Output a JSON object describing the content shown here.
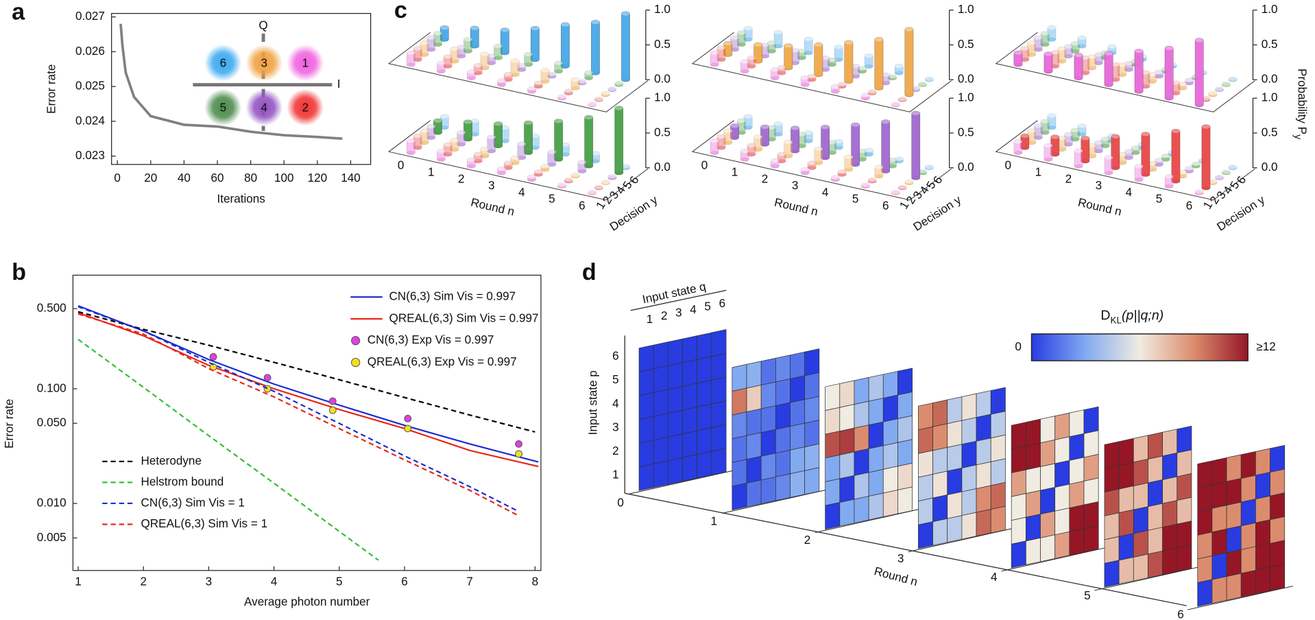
{
  "panels": [
    "a",
    "b",
    "c",
    "d"
  ],
  "chart_data": [
    {
      "type": "line",
      "xlabel": "Iterations",
      "ylabel": "Error rate",
      "color": "#808080",
      "x": [
        2,
        3,
        5,
        10,
        20,
        40,
        60,
        80,
        100,
        120,
        135
      ],
      "values": [
        0.0268,
        0.0262,
        0.0254,
        0.0247,
        0.02415,
        0.0239,
        0.02385,
        0.0237,
        0.0236,
        0.02355,
        0.0235
      ],
      "xlim": [
        -3.5,
        152
      ],
      "ylim": [
        0.02276,
        0.0271
      ],
      "xticks": [
        0,
        20,
        40,
        60,
        80,
        100,
        120,
        140
      ],
      "yticks": [
        0.023,
        0.024,
        0.025,
        0.026,
        0.027
      ],
      "inset": {
        "labels": [
          "6",
          "3",
          "1",
          "5",
          "4",
          "2"
        ],
        "colors": [
          "#3aa8f0",
          "#f0a040",
          "#f060e0",
          "#4a8a4a",
          "#9050c0",
          "#f03030"
        ],
        "axis_labels": [
          "Q",
          "I"
        ]
      }
    },
    {
      "type": "line",
      "log_y": true,
      "xlabel": "Average photon number",
      "ylabel": "Error rate",
      "xlim": [
        0.92,
        8.09
      ],
      "ylim": [
        0.0026,
        0.98
      ],
      "xticks": [
        1,
        2,
        3,
        4,
        5,
        6,
        7,
        8
      ],
      "yticks": [
        {
          "value": 0.005,
          "label": "0.005"
        },
        {
          "value": 0.01,
          "label": "0.010"
        },
        {
          "value": 0.05,
          "label": "0.050"
        },
        {
          "value": 0.1,
          "label": "0.100"
        },
        {
          "value": 0.5,
          "label": "0.500"
        }
      ],
      "series": [
        {
          "name": "CN(6,3) Sim Vis = 0.997",
          "color": "#1a2ed0",
          "style": "solid",
          "legend": "upper right",
          "x": [
            1,
            2,
            3,
            4,
            5,
            6,
            7,
            8.05
          ],
          "values": [
            0.53,
            0.32,
            0.18,
            0.11,
            0.072,
            0.048,
            0.033,
            0.023
          ]
        },
        {
          "name": "QREAL(6,3) Sim Vis = 0.997",
          "color": "#e82818",
          "style": "solid",
          "legend": "upper right",
          "x": [
            1,
            2,
            3,
            4,
            5,
            6,
            7,
            8.05
          ],
          "values": [
            0.46,
            0.29,
            0.16,
            0.1,
            0.066,
            0.045,
            0.029,
            0.021
          ]
        },
        {
          "name": "CN(6,3) Exp Vis = 0.997",
          "color": "#e040e0",
          "style": "markers",
          "legend": "upper right",
          "x": [
            3.07,
            3.9,
            4.9,
            6.05,
            7.75
          ],
          "values": [
            0.19,
            0.125,
            0.078,
            0.055,
            0.033
          ]
        },
        {
          "name": "QREAL(6,3) Exp Vis = 0.997",
          "color": "#f0e020",
          "style": "markers",
          "legend": "upper right",
          "x": [
            3.07,
            3.9,
            4.9,
            6.05,
            7.75
          ],
          "values": [
            0.155,
            0.1,
            0.065,
            0.045,
            0.027
          ]
        },
        {
          "name": "Heterodyne",
          "color": "#000000",
          "style": "dashed",
          "legend": "lower left",
          "x": [
            1,
            2,
            3,
            4,
            5,
            6,
            7,
            8
          ],
          "values": [
            0.47,
            0.33,
            0.24,
            0.17,
            0.12,
            0.084,
            0.059,
            0.042
          ]
        },
        {
          "name": "Helstrom bound",
          "color": "#30c030",
          "style": "dashed",
          "legend": "lower left",
          "x": [
            1,
            2,
            3,
            4,
            5,
            5.6
          ],
          "values": [
            0.27,
            0.103,
            0.039,
            0.015,
            0.0057,
            0.0032
          ]
        },
        {
          "name": "CN(6,3) Sim Vis = 1",
          "color": "#1a2ed0",
          "style": "dashed",
          "legend": "lower left",
          "x": [
            1,
            2,
            3,
            4,
            5,
            6,
            7,
            7.75
          ],
          "values": [
            0.52,
            0.32,
            0.17,
            0.095,
            0.05,
            0.026,
            0.014,
            0.0085
          ]
        },
        {
          "name": "QREAL(6,3) Sim Vis = 1",
          "color": "#e82818",
          "style": "dashed",
          "legend": "lower left",
          "x": [
            1,
            2,
            3,
            4,
            5,
            6,
            7,
            7.75
          ],
          "values": [
            0.45,
            0.3,
            0.15,
            0.085,
            0.045,
            0.024,
            0.013,
            0.0078
          ]
        }
      ]
    },
    {
      "type": "bar3d",
      "xlabel": "Round n",
      "ylabel": "Decision y",
      "zlabel": "Probability P",
      "zlabel_sub": "y",
      "round_ticks": [
        0,
        1,
        2,
        3,
        4,
        5,
        6
      ],
      "decision_ticks": [
        1,
        2,
        3,
        4,
        5,
        6
      ],
      "zlim": [
        0,
        1
      ],
      "zticks": [
        {
          "value": 0,
          "label": "0.0"
        },
        {
          "value": 0.5,
          "label": "0.5"
        },
        {
          "value": 1,
          "label": "1.0"
        }
      ],
      "decision_colors": [
        "#e868d8",
        "#e84848",
        "#f0a848",
        "#a068d0",
        "#48a048",
        "#48a8e8"
      ],
      "series": [
        {
          "color": "#48a8e8",
          "values": [
            [
              0.17,
              0.16,
              0.17,
              0.17,
              0.16,
              0.17
            ],
            [
              0.12,
              0.14,
              0.18,
              0.13,
              0.17,
              0.26
            ],
            [
              0.09,
              0.11,
              0.2,
              0.1,
              0.17,
              0.33
            ],
            [
              0.06,
              0.08,
              0.2,
              0.06,
              0.15,
              0.45
            ],
            [
              0.04,
              0.05,
              0.16,
              0.03,
              0.12,
              0.6
            ],
            [
              0.02,
              0.03,
              0.12,
              0.02,
              0.08,
              0.73
            ],
            [
              0.01,
              0.01,
              0.02,
              0.01,
              0.02,
              0.95
            ]
          ]
        },
        {
          "color": "#f0a848",
          "values": [
            [
              0.17,
              0.17,
              0.16,
              0.17,
              0.17,
              0.16
            ],
            [
              0.14,
              0.12,
              0.24,
              0.16,
              0.12,
              0.2
            ],
            [
              0.12,
              0.08,
              0.32,
              0.18,
              0.1,
              0.2
            ],
            [
              0.1,
              0.05,
              0.43,
              0.17,
              0.07,
              0.18
            ],
            [
              0.07,
              0.03,
              0.56,
              0.15,
              0.04,
              0.15
            ],
            [
              0.04,
              0.02,
              0.7,
              0.12,
              0.02,
              0.1
            ],
            [
              0.01,
              0.01,
              0.94,
              0.02,
              0.01,
              0.01
            ]
          ]
        },
        {
          "color": "#e868d8",
          "values": [
            [
              0.17,
              0.16,
              0.17,
              0.17,
              0.16,
              0.17
            ],
            [
              0.25,
              0.2,
              0.18,
              0.14,
              0.11,
              0.12
            ],
            [
              0.33,
              0.22,
              0.16,
              0.12,
              0.08,
              0.09
            ],
            [
              0.45,
              0.22,
              0.14,
              0.09,
              0.05,
              0.05
            ],
            [
              0.58,
              0.2,
              0.1,
              0.06,
              0.03,
              0.03
            ],
            [
              0.72,
              0.15,
              0.06,
              0.04,
              0.02,
              0.01
            ],
            [
              0.93,
              0.02,
              0.02,
              0.01,
              0.01,
              0.01
            ]
          ]
        },
        {
          "color": "#48a048",
          "values": [
            [
              0.17,
              0.17,
              0.17,
              0.16,
              0.17,
              0.16
            ],
            [
              0.12,
              0.14,
              0.13,
              0.17,
              0.25,
              0.19
            ],
            [
              0.09,
              0.1,
              0.1,
              0.2,
              0.32,
              0.19
            ],
            [
              0.06,
              0.07,
              0.07,
              0.2,
              0.43,
              0.17
            ],
            [
              0.04,
              0.04,
              0.05,
              0.18,
              0.55,
              0.14
            ],
            [
              0.02,
              0.02,
              0.02,
              0.13,
              0.7,
              0.11
            ],
            [
              0.01,
              0.01,
              0.01,
              0.02,
              0.93,
              0.02
            ]
          ]
        },
        {
          "color": "#a068d0",
          "values": [
            [
              0.17,
              0.16,
              0.17,
              0.17,
              0.17,
              0.16
            ],
            [
              0.12,
              0.13,
              0.18,
              0.25,
              0.17,
              0.15
            ],
            [
              0.08,
              0.1,
              0.2,
              0.33,
              0.17,
              0.12
            ],
            [
              0.05,
              0.07,
              0.2,
              0.44,
              0.15,
              0.09
            ],
            [
              0.03,
              0.04,
              0.18,
              0.57,
              0.12,
              0.06
            ],
            [
              0.02,
              0.02,
              0.13,
              0.71,
              0.09,
              0.03
            ],
            [
              0.01,
              0.01,
              0.02,
              0.93,
              0.02,
              0.01
            ]
          ]
        },
        {
          "color": "#e84848",
          "values": [
            [
              0.16,
              0.17,
              0.17,
              0.17,
              0.16,
              0.17
            ],
            [
              0.2,
              0.25,
              0.16,
              0.14,
              0.13,
              0.12
            ],
            [
              0.22,
              0.33,
              0.15,
              0.12,
              0.1,
              0.08
            ],
            [
              0.22,
              0.45,
              0.12,
              0.09,
              0.07,
              0.05
            ],
            [
              0.19,
              0.58,
              0.09,
              0.06,
              0.05,
              0.03
            ],
            [
              0.14,
              0.72,
              0.06,
              0.04,
              0.03,
              0.01
            ],
            [
              0.02,
              0.88,
              0.02,
              0.01,
              0.01,
              0.01
            ]
          ]
        }
      ]
    },
    {
      "type": "heatmap3d",
      "xlabel": "Round n",
      "qlabel": "Input state q",
      "plabel": "Input state p",
      "colorbar_label": "D",
      "colorbar_label_sub": "KL",
      "colorbar_label_rest": "(p||q;n)",
      "clim": [
        0,
        12
      ],
      "cticks": [
        0,
        {
          "value": 12,
          "label": "≥12"
        }
      ],
      "round_ticks": [
        0,
        1,
        2,
        3,
        4,
        5,
        6
      ],
      "q_ticks": [
        1,
        2,
        3,
        4,
        5,
        6
      ],
      "p_ticks": [
        1,
        2,
        3,
        4,
        5,
        6
      ],
      "matrices": [
        [
          [
            0,
            0,
            0,
            0,
            0,
            0
          ],
          [
            0,
            0,
            0,
            0,
            0,
            0
          ],
          [
            0,
            0,
            0,
            0,
            0,
            0
          ],
          [
            0,
            0,
            0,
            0,
            0,
            0
          ],
          [
            0,
            0,
            0,
            0,
            0,
            0
          ],
          [
            0,
            0,
            0,
            0,
            0,
            0
          ]
        ],
        [
          [
            0,
            1.5,
            1.5,
            2.1,
            3.3,
            3
          ],
          [
            1.5,
            0,
            2.1,
            1.5,
            3,
            3.3
          ],
          [
            1.5,
            2.1,
            0,
            1.5,
            2.1,
            1.5
          ],
          [
            2.1,
            1.5,
            1.5,
            0,
            1.5,
            2.1
          ],
          [
            9.5,
            7,
            2.1,
            1.5,
            0,
            1.5
          ],
          [
            3,
            3.3,
            1.5,
            2.1,
            1.5,
            0
          ]
        ],
        [
          [
            0,
            3,
            3,
            4.2,
            6.6,
            6
          ],
          [
            3,
            0,
            4.2,
            3,
            6,
            6.6
          ],
          [
            3,
            4.2,
            0,
            3,
            4.2,
            3
          ],
          [
            10.5,
            11,
            9,
            0,
            3,
            4.2
          ],
          [
            6.6,
            6,
            4.2,
            3,
            0,
            3
          ],
          [
            6,
            6.6,
            3,
            4.2,
            3,
            0
          ]
        ],
        [
          [
            0,
            4.5,
            4.5,
            6.3,
            9.9,
            9
          ],
          [
            4.5,
            0,
            6.3,
            4.5,
            9,
            9.9
          ],
          [
            4.5,
            6.3,
            0,
            4.5,
            6.3,
            4.5
          ],
          [
            6.3,
            4.5,
            4.5,
            0,
            4.5,
            6.3
          ],
          [
            9.9,
            9,
            6.3,
            4.5,
            0,
            4.5
          ],
          [
            9,
            9.9,
            4.5,
            6.3,
            4.5,
            0
          ]
        ],
        [
          [
            0,
            6,
            6,
            8.4,
            12.5,
            12
          ],
          [
            6,
            0,
            8.4,
            6,
            12,
            12.5
          ],
          [
            6,
            8.4,
            0,
            6,
            8.4,
            6
          ],
          [
            8.4,
            6,
            6,
            0,
            6,
            8.4
          ],
          [
            12.5,
            12,
            8.4,
            6,
            0,
            6
          ],
          [
            12,
            12.5,
            6,
            8.4,
            6,
            0
          ]
        ],
        [
          [
            0,
            7.5,
            7.5,
            10.5,
            13,
            13
          ],
          [
            7.5,
            0,
            10.5,
            7.5,
            13,
            13
          ],
          [
            7.5,
            10.5,
            0,
            7.5,
            10.5,
            7.5
          ],
          [
            10.5,
            7.5,
            7.5,
            0,
            7.5,
            10.5
          ],
          [
            13,
            13,
            10.5,
            7.5,
            0,
            7.5
          ],
          [
            13,
            13,
            7.5,
            10.5,
            7.5,
            0
          ]
        ],
        [
          [
            0,
            9,
            9,
            12.6,
            14,
            14
          ],
          [
            9,
            0,
            12.6,
            9,
            14,
            14
          ],
          [
            9,
            12.6,
            0,
            9,
            12.6,
            9
          ],
          [
            12.6,
            9,
            9,
            0,
            9,
            12.6
          ],
          [
            14,
            14,
            12.6,
            9,
            0,
            9
          ],
          [
            14,
            14,
            9,
            12.6,
            9,
            0
          ]
        ]
      ]
    }
  ]
}
